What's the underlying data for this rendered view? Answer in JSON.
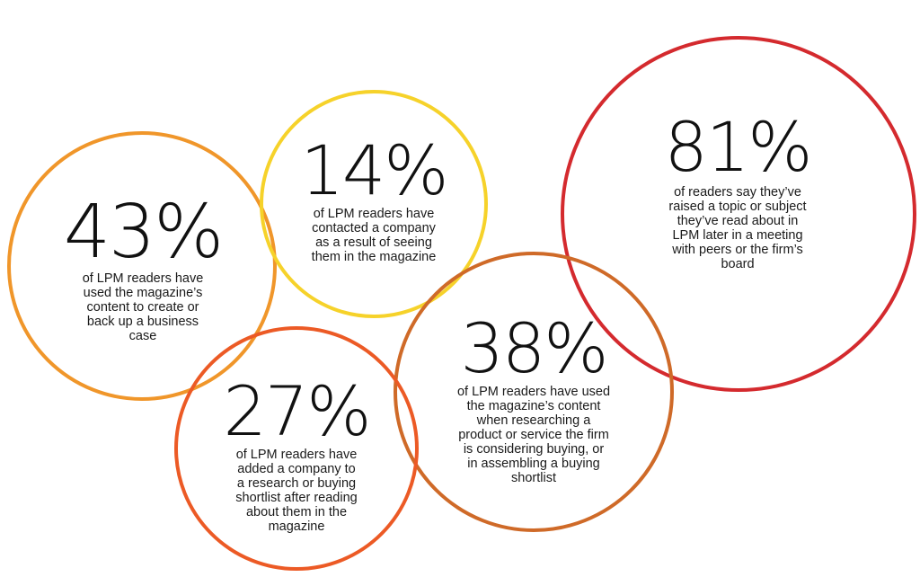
{
  "stats": [
    {
      "id": "43",
      "value": "43%",
      "lines": [
        "of LPM readers have",
        "used the magazine’s",
        "content to create or",
        "back up a business",
        "case"
      ],
      "color": "#f0962a"
    },
    {
      "id": "14",
      "value": "14%",
      "lines": [
        "of LPM readers have",
        "contacted a company",
        "as a result of seeing",
        "them in the magazine"
      ],
      "color": "#f6d22a"
    },
    {
      "id": "81",
      "value": "81%",
      "lines": [
        "of readers say they’ve",
        "raised a topic or subject",
        "they’ve read about in",
        "LPM later in a meeting",
        "with peers or the firm’s",
        "board"
      ],
      "color": "#d42a2e"
    },
    {
      "id": "38",
      "value": "38%",
      "lines": [
        "of LPM readers have used",
        "the magazine’s content",
        "when researching a",
        "product or service the firm",
        "is considering buying, or",
        "in assembling a buying",
        "shortlist"
      ],
      "color": "#cf6a28"
    },
    {
      "id": "27",
      "value": "27%",
      "lines": [
        "of LPM readers have",
        "added a company to",
        "a research or buying",
        "shortlist after reading",
        "about them in the",
        "magazine"
      ],
      "color": "#ec5a25"
    }
  ]
}
